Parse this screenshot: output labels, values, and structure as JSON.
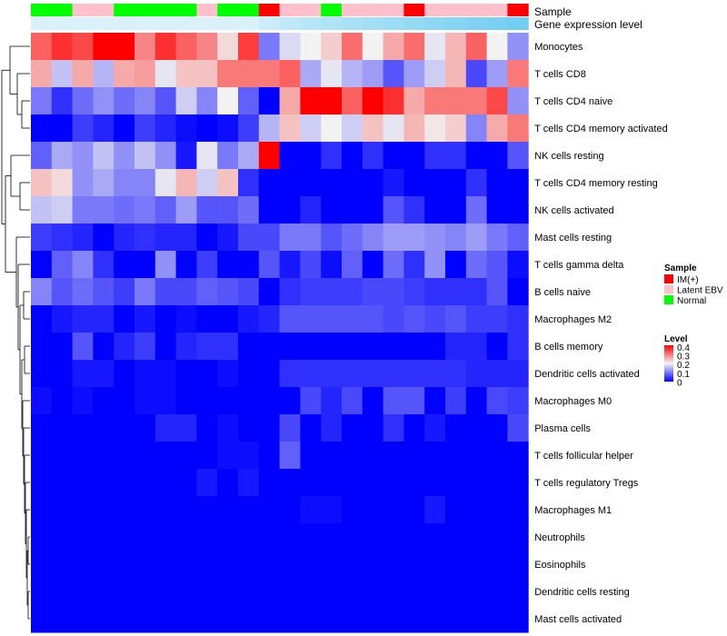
{
  "chart_data": {
    "type": "heatmap",
    "title": "",
    "annotations": {
      "sample_label": "Sample",
      "gene_label": "Gene expression level"
    },
    "samples": [
      "Normal",
      "Normal",
      "Latent EBV",
      "Latent EBV",
      "Normal",
      "Normal",
      "Normal",
      "Normal",
      "Latent EBV",
      "Normal",
      "Normal",
      "IM(+)",
      "Latent EBV",
      "Latent EBV",
      "Normal",
      "Latent EBV",
      "Latent EBV",
      "Latent EBV",
      "IM(+)",
      "Latent EBV",
      "Latent EBV",
      "Latent EBV",
      "Latent EBV",
      "IM(+)"
    ],
    "gene_expression": [
      0.05,
      0.05,
      0.05,
      0.05,
      0.05,
      0.05,
      0.05,
      0.05,
      0.05,
      0.05,
      0.05,
      0.15,
      0.25,
      0.3,
      0.35,
      0.4,
      0.45,
      0.5,
      0.55,
      0.6,
      0.65,
      0.7,
      0.75,
      0.8
    ],
    "rows": [
      "Monocytes",
      "T cells CD8",
      "T cells CD4 naive",
      "T cells CD4 memory activated",
      "NK cells resting",
      "T cells CD4 memory resting",
      "NK cells activated",
      "Mast cells resting",
      "T cells gamma delta",
      "B cells naive",
      "Macrophages M2",
      "B cells memory",
      "Dendritic cells activated",
      "Macrophages M0",
      "Plasma cells",
      "T cells follicular helper",
      "T cells regulatory  Tregs",
      "Macrophages M1",
      "Neutrophils",
      "Eosinophils",
      "Dendritic cells resting",
      "Mast cells activated"
    ],
    "values": [
      [
        0.32,
        0.36,
        0.34,
        0.4,
        0.4,
        0.29,
        0.36,
        0.32,
        0.29,
        0.22,
        0.35,
        0.1,
        0.18,
        0.2,
        0.23,
        0.31,
        0.2,
        0.26,
        0.31,
        0.19,
        0.25,
        0.32,
        0.2,
        0.12
      ],
      [
        0.26,
        0.16,
        0.26,
        0.15,
        0.26,
        0.27,
        0.19,
        0.24,
        0.24,
        0.3,
        0.3,
        0.3,
        0.32,
        0.14,
        0.19,
        0.15,
        0.13,
        0.07,
        0.13,
        0.17,
        0.25,
        0.06,
        0.13,
        0.3
      ],
      [
        0.1,
        0.04,
        0.09,
        0.12,
        0.09,
        0.11,
        0.07,
        0.17,
        0.11,
        0.2,
        0.08,
        0.0,
        0.26,
        0.4,
        0.4,
        0.32,
        0.4,
        0.36,
        0.26,
        0.3,
        0.3,
        0.3,
        0.34,
        0.12
      ],
      [
        0.0,
        0.0,
        0.05,
        0.03,
        0.0,
        0.05,
        0.03,
        0.01,
        0.0,
        0.01,
        0.05,
        0.15,
        0.24,
        0.17,
        0.2,
        0.17,
        0.24,
        0.19,
        0.25,
        0.21,
        0.23,
        0.11,
        0.26,
        0.3
      ],
      [
        0.08,
        0.14,
        0.12,
        0.16,
        0.12,
        0.16,
        0.12,
        0.02,
        0.19,
        0.1,
        0.14,
        0.4,
        0.0,
        0.0,
        0.04,
        0.0,
        0.04,
        0.0,
        0.0,
        0.04,
        0.04,
        0.0,
        0.0,
        0.07
      ],
      [
        0.24,
        0.22,
        0.12,
        0.14,
        0.11,
        0.11,
        0.19,
        0.25,
        0.17,
        0.24,
        0.04,
        0.0,
        0.0,
        0.0,
        0.0,
        0.0,
        0.0,
        0.02,
        0.0,
        0.0,
        0.0,
        0.04,
        0.0,
        0.0
      ],
      [
        0.16,
        0.17,
        0.1,
        0.1,
        0.09,
        0.1,
        0.08,
        0.13,
        0.07,
        0.07,
        0.09,
        0.0,
        0.0,
        0.03,
        0.0,
        0.0,
        0.0,
        0.07,
        0.04,
        0.0,
        0.0,
        0.09,
        0.0,
        0.0
      ],
      [
        0.05,
        0.04,
        0.03,
        0.0,
        0.03,
        0.04,
        0.03,
        0.03,
        0.0,
        0.02,
        0.06,
        0.06,
        0.1,
        0.1,
        0.07,
        0.09,
        0.11,
        0.13,
        0.13,
        0.12,
        0.11,
        0.13,
        0.1,
        0.08
      ],
      [
        0.0,
        0.08,
        0.11,
        0.04,
        0.0,
        0.0,
        0.12,
        0.0,
        0.05,
        0.0,
        0.0,
        0.07,
        0.02,
        0.06,
        0.01,
        0.08,
        0.0,
        0.09,
        0.04,
        0.12,
        0.0,
        0.09,
        0.07,
        0.01
      ],
      [
        0.11,
        0.07,
        0.09,
        0.07,
        0.05,
        0.1,
        0.06,
        0.06,
        0.08,
        0.07,
        0.06,
        0.0,
        0.04,
        0.05,
        0.05,
        0.05,
        0.06,
        0.06,
        0.05,
        0.04,
        0.04,
        0.04,
        0.07,
        0.0
      ],
      [
        0.0,
        0.02,
        0.03,
        0.03,
        0.0,
        0.02,
        0.0,
        0.01,
        0.0,
        0.0,
        0.02,
        0.03,
        0.07,
        0.07,
        0.07,
        0.07,
        0.07,
        0.06,
        0.07,
        0.06,
        0.07,
        0.05,
        0.05,
        0.04
      ],
      [
        0.0,
        0.0,
        0.07,
        0.0,
        0.03,
        0.05,
        0.0,
        0.03,
        0.04,
        0.04,
        0.0,
        0.0,
        0.0,
        0.0,
        0.0,
        0.0,
        0.0,
        0.0,
        0.0,
        0.0,
        0.03,
        0.03,
        0.0,
        0.04
      ],
      [
        0.0,
        0.0,
        0.02,
        0.02,
        0.0,
        0.01,
        0.01,
        0.0,
        0.0,
        0.01,
        0.0,
        0.0,
        0.04,
        0.04,
        0.04,
        0.04,
        0.04,
        0.04,
        0.04,
        0.04,
        0.04,
        0.03,
        0.03,
        0.03
      ],
      [
        0.01,
        0.0,
        0.01,
        0.0,
        0.0,
        0.01,
        0.01,
        0.0,
        0.0,
        0.0,
        0.0,
        0.0,
        0.0,
        0.06,
        0.03,
        0.06,
        0.0,
        0.07,
        0.07,
        0.0,
        0.05,
        0.0,
        0.06,
        0.05
      ],
      [
        0.0,
        0.0,
        0.0,
        0.0,
        0.0,
        0.0,
        0.03,
        0.03,
        0.0,
        0.01,
        0.0,
        0.0,
        0.06,
        0.0,
        0.03,
        0.0,
        0.0,
        0.04,
        0.0,
        0.02,
        0.0,
        0.0,
        0.0,
        0.06
      ],
      [
        0.0,
        0.0,
        0.0,
        0.0,
        0.0,
        0.0,
        0.0,
        0.0,
        0.0,
        0.01,
        0.01,
        0.0,
        0.08,
        0.0,
        0.0,
        0.0,
        0.0,
        0.0,
        0.0,
        0.0,
        0.0,
        0.0,
        0.0,
        0.0
      ],
      [
        0.0,
        0.0,
        0.0,
        0.0,
        0.0,
        0.0,
        0.0,
        0.0,
        0.02,
        0.0,
        0.02,
        0.0,
        0.0,
        0.0,
        0.0,
        0.0,
        0.0,
        0.0,
        0.0,
        0.0,
        0.0,
        0.0,
        0.0,
        0.0
      ],
      [
        0.0,
        0.0,
        0.0,
        0.0,
        0.0,
        0.0,
        0.0,
        0.0,
        0.0,
        0.0,
        0.0,
        0.0,
        0.0,
        0.01,
        0.01,
        0.0,
        0.0,
        0.0,
        0.0,
        0.02,
        0.0,
        0.0,
        0.0,
        0.0
      ],
      [
        0,
        0,
        0,
        0,
        0,
        0,
        0,
        0,
        0,
        0,
        0,
        0,
        0,
        0,
        0,
        0,
        0,
        0,
        0,
        0,
        0,
        0,
        0,
        0
      ],
      [
        0,
        0,
        0,
        0,
        0,
        0,
        0,
        0,
        0,
        0,
        0,
        0,
        0,
        0,
        0,
        0,
        0,
        0,
        0,
        0,
        0,
        0,
        0,
        0
      ],
      [
        0,
        0,
        0,
        0,
        0,
        0,
        0,
        0,
        0,
        0,
        0,
        0,
        0,
        0,
        0,
        0,
        0,
        0,
        0,
        0,
        0,
        0,
        0,
        0
      ],
      [
        0,
        0,
        0,
        0,
        0,
        0,
        0,
        0,
        0,
        0,
        0,
        0,
        0,
        0,
        0,
        0,
        0,
        0,
        0,
        0,
        0,
        0,
        0,
        0
      ]
    ],
    "color_scale": {
      "min": 0,
      "max": 0.4,
      "low_color": "#0000ff",
      "mid_color": "#f2f2f2",
      "high_color": "#ff0000",
      "mid": 0.2
    },
    "legend": {
      "sample_title": "Sample",
      "sample_entries": [
        {
          "label": "IM(+)",
          "color": "#ff0000"
        },
        {
          "label": "Latent EBV",
          "color": "#ffc0cb"
        },
        {
          "label": "Normal",
          "color": "#00ff00"
        }
      ],
      "level_title": "Level",
      "level_ticks": [
        "0.4",
        "0.3",
        "0.2",
        "0.1",
        "0"
      ],
      "gene_low_color": "#e0f4fb",
      "gene_high_color": "#56c4f0"
    }
  }
}
